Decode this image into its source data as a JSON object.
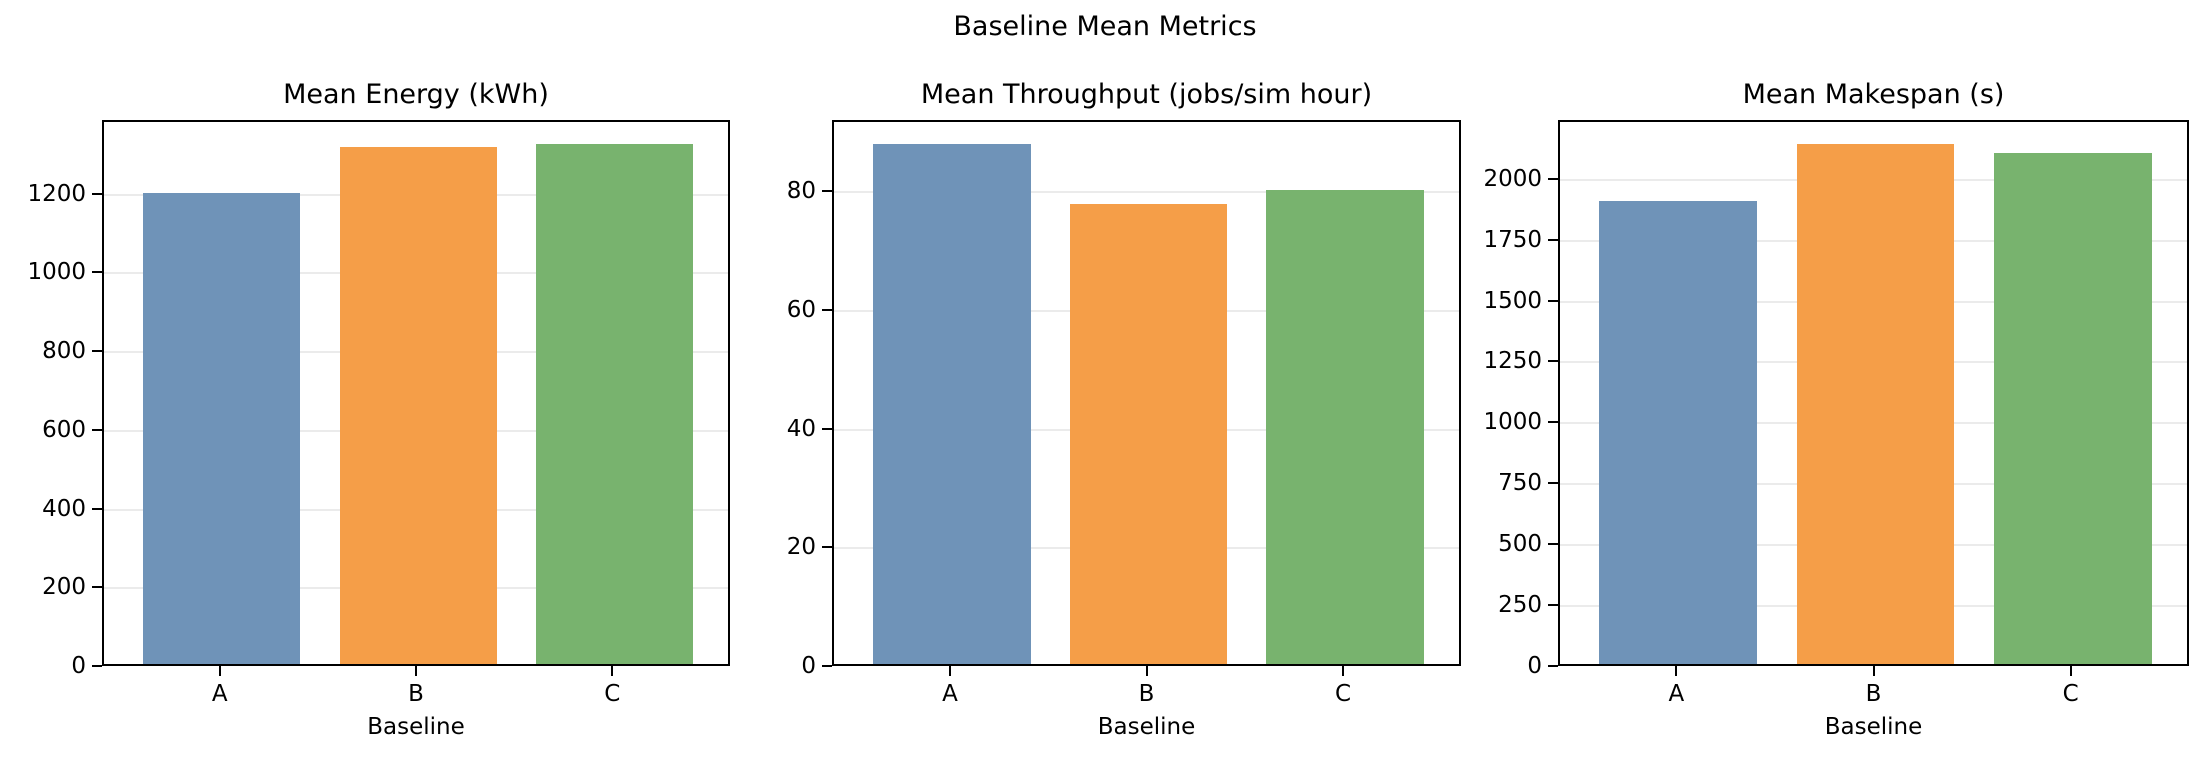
{
  "figure": {
    "title": "Baseline Mean Metrics"
  },
  "colors": {
    "A": "#6f93b8",
    "B": "#f59e48",
    "C": "#78b36e",
    "grid": "#ebebeb"
  },
  "panels": [
    {
      "title": "Mean Energy (kWh)",
      "xlabel": "Baseline",
      "categories": [
        "A",
        "B",
        "C"
      ],
      "yticks": [
        "0",
        "200",
        "400",
        "600",
        "800",
        "1000",
        "1200"
      ]
    },
    {
      "title": "Mean Throughput (jobs/sim hour)",
      "xlabel": "Baseline",
      "categories": [
        "A",
        "B",
        "C"
      ],
      "yticks": [
        "0",
        "20",
        "40",
        "60",
        "80"
      ]
    },
    {
      "title": "Mean Makespan (s)",
      "xlabel": "Baseline",
      "categories": [
        "A",
        "B",
        "C"
      ],
      "yticks": [
        "0",
        "250",
        "500",
        "750",
        "1000",
        "1250",
        "1500",
        "1750",
        "2000"
      ]
    }
  ],
  "chart_data": [
    {
      "type": "bar",
      "title": "Mean Energy (kWh)",
      "suptitle": "Baseline Mean Metrics",
      "categories": [
        "A",
        "B",
        "C"
      ],
      "values": [
        1196,
        1313,
        1320
      ],
      "xlabel": "Baseline",
      "ylabel": "",
      "ylim": [
        0,
        1387
      ],
      "yticks": [
        0,
        200,
        400,
        600,
        800,
        1000,
        1200
      ],
      "grid": "y",
      "colors": [
        "#6f93b8",
        "#f59e48",
        "#78b36e"
      ]
    },
    {
      "type": "bar",
      "title": "Mean Throughput (jobs/sim hour)",
      "suptitle": "Baseline Mean Metrics",
      "categories": [
        "A",
        "B",
        "C"
      ],
      "values": [
        87.6,
        77.5,
        79.8
      ],
      "xlabel": "Baseline",
      "ylabel": "",
      "ylim": [
        0,
        92
      ],
      "yticks": [
        0,
        20,
        40,
        60,
        80
      ],
      "grid": "y",
      "colors": [
        "#6f93b8",
        "#f59e48",
        "#78b36e"
      ]
    },
    {
      "type": "bar",
      "title": "Mean Makespan (s)",
      "suptitle": "Baseline Mean Metrics",
      "categories": [
        "A",
        "B",
        "C"
      ],
      "values": [
        1902,
        2135,
        2098
      ],
      "xlabel": "Baseline",
      "ylabel": "",
      "ylim": [
        0,
        2241
      ],
      "yticks": [
        0,
        250,
        500,
        750,
        1000,
        1250,
        1500,
        1750,
        2000
      ],
      "grid": "y",
      "colors": [
        "#6f93b8",
        "#f59e48",
        "#78b36e"
      ]
    }
  ]
}
